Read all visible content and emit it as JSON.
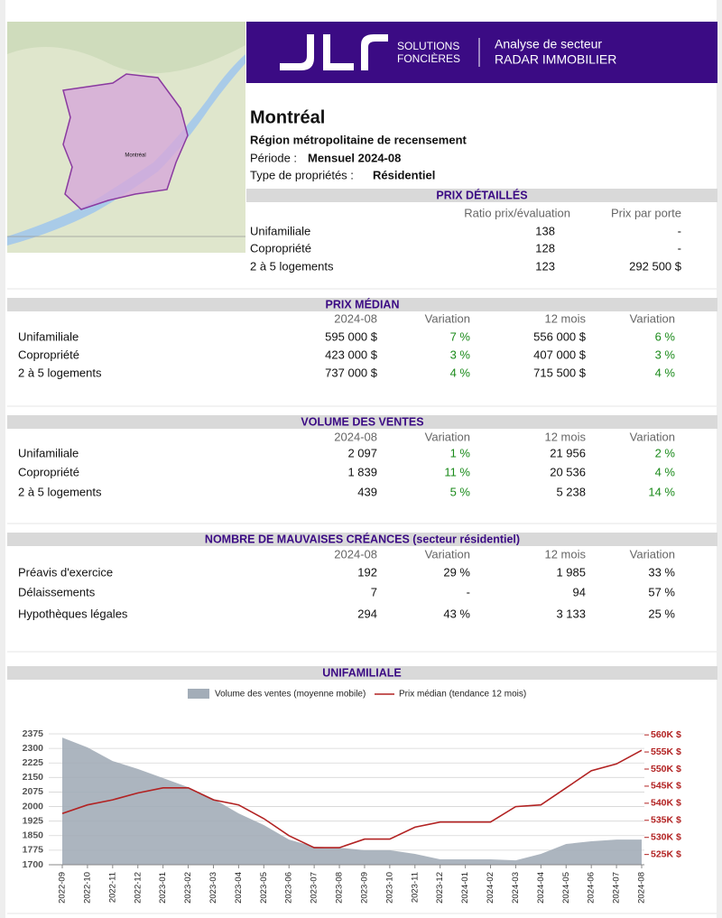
{
  "logo": {
    "brand_line1": "SOLUTIONS",
    "brand_line2": "FONCIÈRES",
    "title_line1": "Analyse de secteur",
    "title_line2": "RADAR IMMOBILIER"
  },
  "map": {
    "label": "Montréal"
  },
  "header": {
    "city": "Montréal",
    "region": "Région métropolitaine de recensement",
    "period_label": "Période :",
    "period": "Mensuel 2024-08",
    "type_label": "Type de propriétés :",
    "type": "Résidentiel"
  },
  "prix_detailles": {
    "title": "PRIX DÉTAILLÉS",
    "columns": [
      "Ratio prix/évaluation",
      "Prix par porte"
    ],
    "rows": [
      [
        "Unifamiliale",
        "138",
        "-"
      ],
      [
        "Copropriété",
        "128",
        "-"
      ],
      [
        "2 à 5 logements",
        "123",
        "292 500 $"
      ]
    ]
  },
  "prix_median": {
    "title": "PRIX MÉDIAN",
    "columns": [
      "2024-08",
      "Variation",
      "12 mois",
      "Variation"
    ],
    "rows": [
      [
        "Unifamiliale",
        "595 000 $",
        "7 %",
        "556 000 $",
        "6 %"
      ],
      [
        "Copropriété",
        "423 000 $",
        "3 %",
        "407 000 $",
        "3 %"
      ],
      [
        "2 à 5 logements",
        "737 000 $",
        "4 %",
        "715 500 $",
        "4 %"
      ]
    ]
  },
  "volume_ventes": {
    "title": "VOLUME DES VENTES",
    "columns": [
      "2024-08",
      "Variation",
      "12 mois",
      "Variation"
    ],
    "rows": [
      [
        "Unifamiliale",
        "2 097",
        "1 %",
        "21 956",
        "2 %"
      ],
      [
        "Copropriété",
        "1 839",
        "11 %",
        "20 536",
        "4 %"
      ],
      [
        "2 à 5 logements",
        "439",
        "5 %",
        "5 238",
        "14 %"
      ]
    ]
  },
  "mauvaises_creances": {
    "title": "NOMBRE DE MAUVAISES CRÉANCES (secteur résidentiel)",
    "columns": [
      "2024-08",
      "Variation",
      "12 mois",
      "Variation"
    ],
    "rows": [
      [
        "Préavis d'exercice",
        "192",
        "29 %",
        "1 985",
        "33 %"
      ],
      [
        "Délaissements",
        "7",
        "-",
        "94",
        "57 %"
      ],
      [
        "Hypothèques légales",
        "294",
        "43 %",
        "3 133",
        "25 %"
      ]
    ]
  },
  "chart_data": {
    "type": "area-line",
    "title": "UNIFAMILIALE",
    "x": [
      "2022-09",
      "2022-10",
      "2022-11",
      "2022-12",
      "2023-01",
      "2023-02",
      "2023-03",
      "2023-04",
      "2023-05",
      "2023-06",
      "2023-07",
      "2023-08",
      "2023-09",
      "2023-10",
      "2023-11",
      "2023-12",
      "2024-01",
      "2024-02",
      "2024-03",
      "2024-04",
      "2024-05",
      "2024-06",
      "2024-07",
      "2024-08"
    ],
    "series": [
      {
        "name": "Volume des ventes (moyenne mobile)",
        "color": "#a3adb8",
        "values": [
          2356,
          2305,
          2235,
          2194,
          2147,
          2100,
          2040,
          1965,
          1905,
          1830,
          1793,
          1788,
          1775,
          1775,
          1756,
          1728,
          1728,
          1728,
          1723,
          1756,
          1807,
          1821,
          1830,
          1830
        ]
      },
      {
        "name": "Prix médian (tendance 12 mois)",
        "color": "#b22222",
        "axis": "y2",
        "values": [
          537000,
          539500,
          541000,
          543000,
          544500,
          544500,
          541000,
          539500,
          535500,
          530500,
          527000,
          527000,
          529500,
          529500,
          533000,
          534500,
          534500,
          534500,
          539000,
          539500,
          544500,
          549500,
          551500,
          555500
        ]
      }
    ],
    "ylim": [
      1700,
      2375
    ],
    "yticks": [
      1700,
      1775,
      1850,
      1925,
      2000,
      2075,
      2150,
      2225,
      2300,
      2375
    ],
    "y2lim": [
      522000,
      560300
    ],
    "y2ticks": [
      {
        "value": 525000,
        "label": "525K $"
      },
      {
        "value": 530000,
        "label": "530K $"
      },
      {
        "value": 535000,
        "label": "535K $"
      },
      {
        "value": 540000,
        "label": "540K $"
      },
      {
        "value": 545000,
        "label": "545K $"
      },
      {
        "value": 550000,
        "label": "550K $"
      },
      {
        "value": 555000,
        "label": "555K $"
      },
      {
        "value": 560000,
        "label": "560K $"
      }
    ],
    "grid": true
  }
}
